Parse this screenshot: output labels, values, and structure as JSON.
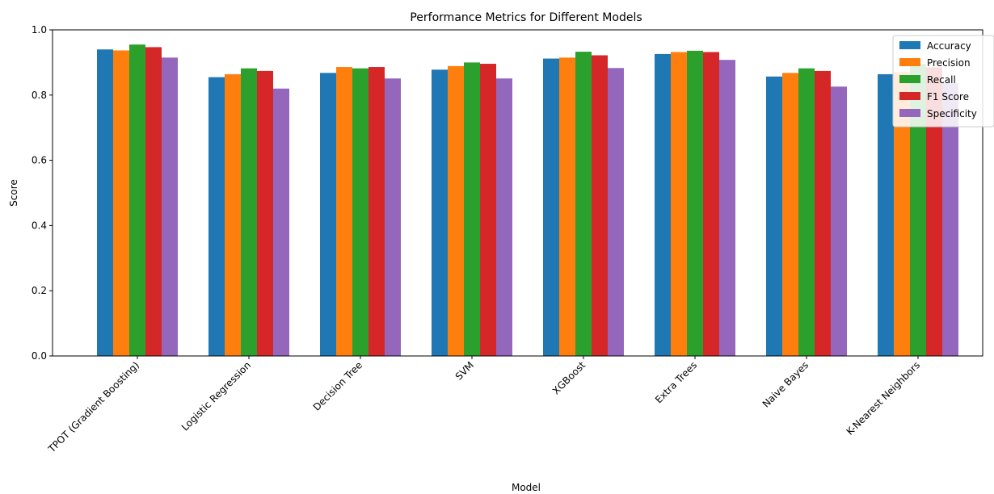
{
  "chart_data": {
    "type": "bar",
    "title": "Performance Metrics for Different Models",
    "xlabel": "Model",
    "ylabel": "Score",
    "ylim": [
      0,
      1.0
    ],
    "yticks": [
      "0.0",
      "0.2",
      "0.4",
      "0.6",
      "0.8",
      "1.0"
    ],
    "grid": false,
    "legend_position": "top-right",
    "categories": [
      "TPOT (Gradient Boosting)",
      "Logistic Regression",
      "Decision Tree",
      "SVM",
      "XGBoost",
      "Extra Trees",
      "Naive Bayes",
      "K-Nearest Neighbors"
    ],
    "series": [
      {
        "name": "Accuracy",
        "color": "#1f77b4",
        "values": [
          0.94,
          0.855,
          0.868,
          0.878,
          0.912,
          0.926,
          0.857,
          0.864
        ]
      },
      {
        "name": "Precision",
        "color": "#ff7f0e",
        "values": [
          0.937,
          0.864,
          0.886,
          0.889,
          0.915,
          0.932,
          0.868,
          0.87
        ]
      },
      {
        "name": "Recall",
        "color": "#2ca02c",
        "values": [
          0.955,
          0.882,
          0.882,
          0.9,
          0.933,
          0.936,
          0.882,
          0.895
        ]
      },
      {
        "name": "F1 Score",
        "color": "#d62728",
        "values": [
          0.947,
          0.874,
          0.886,
          0.896,
          0.922,
          0.932,
          0.874,
          0.885
        ]
      },
      {
        "name": "Specificity",
        "color": "#9467bd",
        "values": [
          0.915,
          0.82,
          0.851,
          0.851,
          0.883,
          0.908,
          0.826,
          0.836
        ]
      }
    ]
  }
}
